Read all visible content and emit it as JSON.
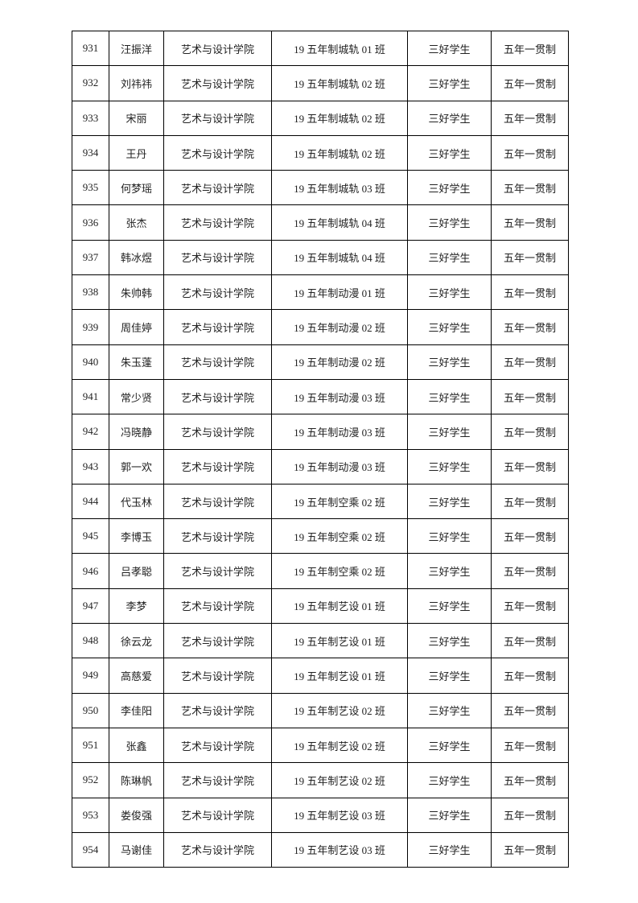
{
  "table": {
    "rows": [
      [
        "931",
        "汪振洋",
        "艺术与设计学院",
        "19 五年制城轨 01 班",
        "三好学生",
        "五年一贯制"
      ],
      [
        "932",
        "刘祎祎",
        "艺术与设计学院",
        "19 五年制城轨 02 班",
        "三好学生",
        "五年一贯制"
      ],
      [
        "933",
        "宋丽",
        "艺术与设计学院",
        "19 五年制城轨 02 班",
        "三好学生",
        "五年一贯制"
      ],
      [
        "934",
        "王丹",
        "艺术与设计学院",
        "19 五年制城轨 02 班",
        "三好学生",
        "五年一贯制"
      ],
      [
        "935",
        "何梦瑶",
        "艺术与设计学院",
        "19 五年制城轨 03 班",
        "三好学生",
        "五年一贯制"
      ],
      [
        "936",
        "张杰",
        "艺术与设计学院",
        "19 五年制城轨 04 班",
        "三好学生",
        "五年一贯制"
      ],
      [
        "937",
        "韩冰煜",
        "艺术与设计学院",
        "19 五年制城轨 04 班",
        "三好学生",
        "五年一贯制"
      ],
      [
        "938",
        "朱帅韩",
        "艺术与设计学院",
        "19 五年制动漫 01 班",
        "三好学生",
        "五年一贯制"
      ],
      [
        "939",
        "周佳婷",
        "艺术与设计学院",
        "19 五年制动漫 02 班",
        "三好学生",
        "五年一贯制"
      ],
      [
        "940",
        "朱玉蓬",
        "艺术与设计学院",
        "19 五年制动漫 02 班",
        "三好学生",
        "五年一贯制"
      ],
      [
        "941",
        "常少贤",
        "艺术与设计学院",
        "19 五年制动漫 03 班",
        "三好学生",
        "五年一贯制"
      ],
      [
        "942",
        "冯晓静",
        "艺术与设计学院",
        "19 五年制动漫 03 班",
        "三好学生",
        "五年一贯制"
      ],
      [
        "943",
        "郭一欢",
        "艺术与设计学院",
        "19 五年制动漫 03 班",
        "三好学生",
        "五年一贯制"
      ],
      [
        "944",
        "代玉林",
        "艺术与设计学院",
        "19 五年制空乘 02 班",
        "三好学生",
        "五年一贯制"
      ],
      [
        "945",
        "李博玉",
        "艺术与设计学院",
        "19 五年制空乘 02 班",
        "三好学生",
        "五年一贯制"
      ],
      [
        "946",
        "吕孝聪",
        "艺术与设计学院",
        "19 五年制空乘 02 班",
        "三好学生",
        "五年一贯制"
      ],
      [
        "947",
        "李梦",
        "艺术与设计学院",
        "19 五年制艺设 01 班",
        "三好学生",
        "五年一贯制"
      ],
      [
        "948",
        "徐云龙",
        "艺术与设计学院",
        "19 五年制艺设 01 班",
        "三好学生",
        "五年一贯制"
      ],
      [
        "949",
        "高慈爱",
        "艺术与设计学院",
        "19 五年制艺设 01 班",
        "三好学生",
        "五年一贯制"
      ],
      [
        "950",
        "李佳阳",
        "艺术与设计学院",
        "19 五年制艺设 02 班",
        "三好学生",
        "五年一贯制"
      ],
      [
        "951",
        "张鑫",
        "艺术与设计学院",
        "19 五年制艺设 02 班",
        "三好学生",
        "五年一贯制"
      ],
      [
        "952",
        "陈琳帆",
        "艺术与设计学院",
        "19 五年制艺设 02 班",
        "三好学生",
        "五年一贯制"
      ],
      [
        "953",
        "娄俊强",
        "艺术与设计学院",
        "19 五年制艺设 03 班",
        "三好学生",
        "五年一贯制"
      ],
      [
        "954",
        "马谢佳",
        "艺术与设计学院",
        "19 五年制艺设 03 班",
        "三好学生",
        "五年一贯制"
      ]
    ]
  }
}
